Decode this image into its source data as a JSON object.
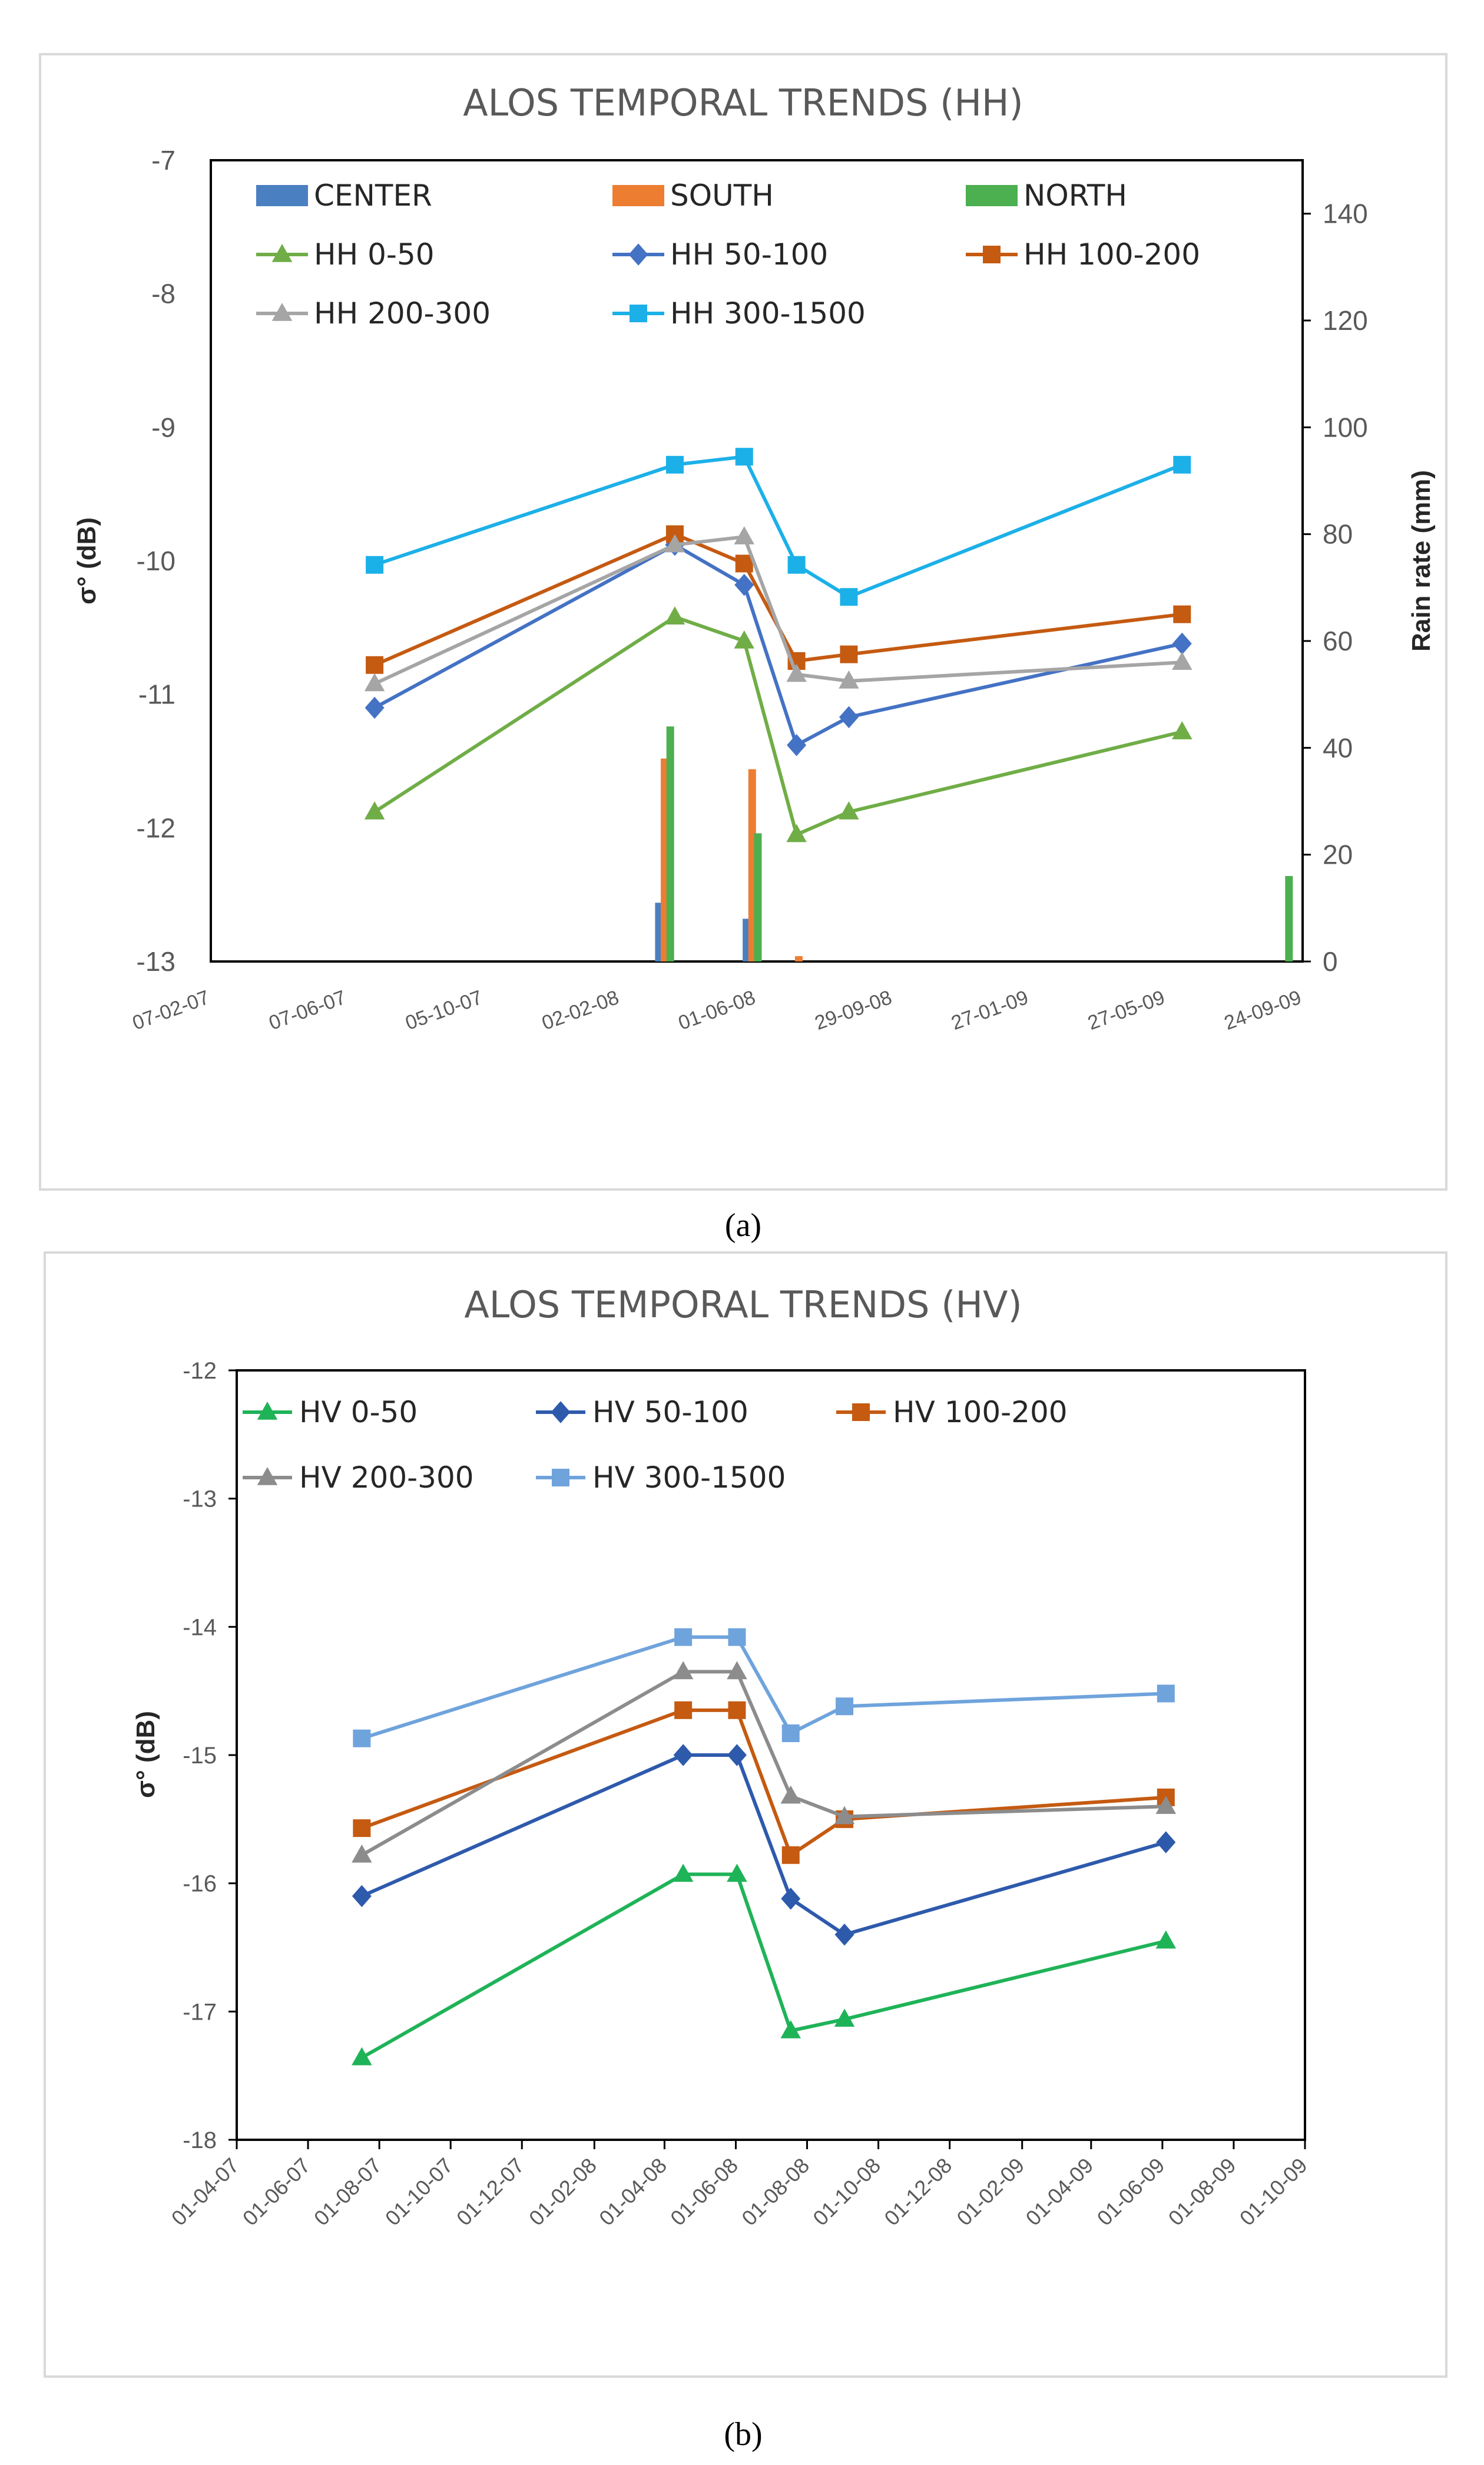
{
  "figure": {
    "label_a": "(a)",
    "label_b": "(b)"
  },
  "chart_data": [
    {
      "type": "line",
      "title": "ALOS TEMPORAL TRENDS (HH)",
      "ylabel": "σ° (dB)",
      "y2label": "Rain rate (mm)",
      "ylim": [
        -13,
        -7
      ],
      "y2lim": [
        0,
        150
      ],
      "yticks": [
        -7,
        -8,
        -9,
        -10,
        -11,
        -12,
        -13
      ],
      "y2ticks": [
        0,
        20,
        40,
        60,
        80,
        100,
        120,
        140
      ],
      "xtick_labels": [
        "07-02-07",
        "07-06-07",
        "05-10-07",
        "02-02-08",
        "01-06-08",
        "29-09-08",
        "27-01-09",
        "27-05-09",
        "24-09-09"
      ],
      "x": [
        "01-07-07",
        "21-03-08",
        "21-05-08",
        "06-07-08",
        "21-08-08",
        "10-06-09"
      ],
      "series": [
        {
          "name": "HH 0-50",
          "color": "#70ad47",
          "marker": "triangle",
          "values": [
            -11.88,
            -10.42,
            -10.6,
            -12.05,
            -11.88,
            -11.28
          ]
        },
        {
          "name": "HH 50-100",
          "color": "#4472c4",
          "marker": "diamond",
          "values": [
            -11.1,
            -9.88,
            -10.18,
            -11.38,
            -11.17,
            -10.62
          ]
        },
        {
          "name": "HH 100-200",
          "color": "#c55a11",
          "marker": "square",
          "values": [
            -10.78,
            -9.8,
            -10.02,
            -10.75,
            -10.7,
            -10.4
          ]
        },
        {
          "name": "HH 200-300",
          "color": "#a5a5a5",
          "marker": "triangle",
          "values": [
            -10.92,
            -9.88,
            -9.82,
            -10.85,
            -10.9,
            -10.76
          ]
        },
        {
          "name": "HH 300-1500",
          "color": "#1cb0e8",
          "marker": "square",
          "values": [
            -10.03,
            -9.28,
            -9.22,
            -10.03,
            -10.27,
            -9.28
          ]
        }
      ],
      "bars": [
        {
          "name": "CENTER",
          "color": "#4a7fc1",
          "dates": [
            "07-03-08",
            "23-05-08"
          ],
          "values": [
            11,
            8
          ]
        },
        {
          "name": "SOUTH",
          "color": "#ed7d31",
          "dates": [
            "12-03-08",
            "28-05-08",
            "08-07-08",
            "07-09-09"
          ],
          "values": [
            38,
            36,
            1,
            0
          ]
        },
        {
          "name": "NORTH",
          "color": "#4caf50",
          "dates": [
            "17-03-08",
            "02-06-08",
            "12-09-09"
          ],
          "values": [
            44,
            24,
            16
          ]
        }
      ],
      "legend": [
        "CENTER",
        "SOUTH",
        "NORTH",
        "HH 0-50",
        "HH 50-100",
        "HH 100-200",
        "HH 200-300",
        "HH 300-1500"
      ]
    },
    {
      "type": "line",
      "title": "ALOS TEMPORAL TRENDS (HV)",
      "ylabel": "σ° (dB)",
      "ylim": [
        -18,
        -12
      ],
      "yticks": [
        -12,
        -13,
        -14,
        -15,
        -16,
        -17,
        -18
      ],
      "xtick_labels": [
        "01-04-07",
        "01-06-07",
        "01-08-07",
        "01-10-07",
        "01-12-07",
        "01-02-08",
        "01-04-08",
        "01-06-08",
        "01-08-08",
        "01-10-08",
        "01-12-08",
        "01-02-09",
        "01-04-09",
        "01-06-09",
        "01-08-09",
        "01-10-09"
      ],
      "x": [
        "17-07-07",
        "17-04-08",
        "02-06-08",
        "18-07-08",
        "02-09-08",
        "04-06-09"
      ],
      "series": [
        {
          "name": "HV 0-50",
          "color": "#1fb358",
          "marker": "triangle",
          "values": [
            -17.36,
            -15.93,
            -15.93,
            -17.15,
            -17.06,
            -16.45
          ]
        },
        {
          "name": "HV 50-100",
          "color": "#2e5aac",
          "marker": "diamond",
          "values": [
            -16.1,
            -15.0,
            -15.0,
            -16.12,
            -16.4,
            -15.68
          ]
        },
        {
          "name": "HV 100-200",
          "color": "#c55a11",
          "marker": "square",
          "values": [
            -15.57,
            -14.65,
            -14.65,
            -15.78,
            -15.5,
            -15.33
          ]
        },
        {
          "name": "HV 200-300",
          "color": "#8c8c8c",
          "marker": "triangle",
          "values": [
            -15.78,
            -14.35,
            -14.35,
            -15.32,
            -15.48,
            -15.4
          ]
        },
        {
          "name": "HV 300-1500",
          "color": "#6fa3dc",
          "marker": "square",
          "values": [
            -14.87,
            -14.08,
            -14.08,
            -14.83,
            -14.62,
            -14.52
          ]
        }
      ],
      "legend": [
        "HV 0-50",
        "HV 50-100",
        "HV 100-200",
        "HV 200-300",
        "HV 300-1500"
      ]
    }
  ]
}
